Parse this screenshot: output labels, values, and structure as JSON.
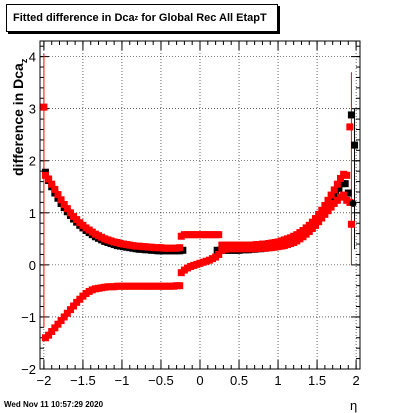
{
  "title_main": "Fitted difference in Dca",
  "title_sub": "z",
  "title_tail": " for Global Rec All EtapT",
  "ylabel_main": "difference in Dca",
  "ylabel_sub": "z",
  "xlabel": "η",
  "footer": "Wed Nov 11 10:57:29 2020",
  "chart_data": {
    "type": "scatter",
    "xlim": [
      -2.05,
      2.05
    ],
    "ylim": [
      -2,
      4.3
    ],
    "xticks": [
      -2,
      -1.5,
      -1,
      -0.5,
      0,
      0.5,
      1,
      1.5,
      2
    ],
    "xtick_labels": [
      "−2",
      "−1.5",
      "−1",
      "−0.5",
      "0",
      "0.5",
      "1",
      "1.5",
      "2"
    ],
    "yticks": [
      -2,
      -1,
      0,
      1,
      2,
      3,
      4
    ],
    "ytick_labels": [
      "−2",
      "−1",
      "0",
      "1",
      "2",
      "3",
      "4"
    ],
    "grid": true,
    "series": [
      {
        "color": "#000000",
        "marker": "square",
        "points": [
          [
            -1.98,
            1.78
          ],
          [
            -1.94,
            1.62
          ],
          [
            -1.9,
            1.5
          ],
          [
            -1.86,
            1.38
          ],
          [
            -1.82,
            1.28
          ],
          [
            -1.78,
            1.18
          ],
          [
            -1.74,
            1.1
          ],
          [
            -1.7,
            1.02
          ],
          [
            -1.66,
            0.95
          ],
          [
            -1.62,
            0.88
          ],
          [
            -1.58,
            0.82
          ],
          [
            -1.54,
            0.76
          ],
          [
            -1.5,
            0.71
          ],
          [
            -1.46,
            0.66
          ],
          [
            -1.42,
            0.62
          ],
          [
            -1.38,
            0.58
          ],
          [
            -1.34,
            0.54
          ],
          [
            -1.3,
            0.51
          ],
          [
            -1.26,
            0.48
          ],
          [
            -1.22,
            0.45
          ],
          [
            -1.18,
            0.43
          ],
          [
            -1.14,
            0.41
          ],
          [
            -1.1,
            0.39
          ],
          [
            -1.06,
            0.37
          ],
          [
            -1.02,
            0.36
          ],
          [
            -0.98,
            0.35
          ],
          [
            -0.94,
            0.34
          ],
          [
            -0.9,
            0.33
          ],
          [
            -0.86,
            0.32
          ],
          [
            -0.82,
            0.31
          ],
          [
            -0.78,
            0.3
          ],
          [
            -0.74,
            0.3
          ],
          [
            -0.7,
            0.29
          ],
          [
            -0.66,
            0.29
          ],
          [
            -0.62,
            0.28
          ],
          [
            -0.58,
            0.28
          ],
          [
            -0.54,
            0.27
          ],
          [
            -0.5,
            0.27
          ],
          [
            -0.46,
            0.27
          ],
          [
            -0.42,
            0.27
          ],
          [
            -0.38,
            0.27
          ],
          [
            -0.34,
            0.27
          ],
          [
            -0.3,
            0.27
          ],
          [
            -0.26,
            0.27
          ],
          [
            -0.22,
            0.28
          ],
          [
            0.22,
            0.28
          ],
          [
            0.26,
            0.28
          ],
          [
            0.3,
            0.28
          ],
          [
            0.34,
            0.28
          ],
          [
            0.38,
            0.28
          ],
          [
            0.42,
            0.28
          ],
          [
            0.46,
            0.28
          ],
          [
            0.5,
            0.28
          ],
          [
            0.54,
            0.29
          ],
          [
            0.58,
            0.29
          ],
          [
            0.62,
            0.29
          ],
          [
            0.66,
            0.3
          ],
          [
            0.7,
            0.3
          ],
          [
            0.74,
            0.31
          ],
          [
            0.78,
            0.31
          ],
          [
            0.82,
            0.32
          ],
          [
            0.86,
            0.33
          ],
          [
            0.9,
            0.34
          ],
          [
            0.94,
            0.35
          ],
          [
            0.98,
            0.36
          ],
          [
            1.02,
            0.37
          ],
          [
            1.06,
            0.39
          ],
          [
            1.1,
            0.41
          ],
          [
            1.14,
            0.43
          ],
          [
            1.18,
            0.46
          ],
          [
            1.22,
            0.49
          ],
          [
            1.26,
            0.52
          ],
          [
            1.3,
            0.56
          ],
          [
            1.34,
            0.6
          ],
          [
            1.38,
            0.65
          ],
          [
            1.42,
            0.7
          ],
          [
            1.46,
            0.76
          ],
          [
            1.5,
            0.83
          ],
          [
            1.54,
            0.91
          ],
          [
            1.58,
            0.99
          ],
          [
            1.62,
            1.08
          ],
          [
            1.66,
            1.17
          ],
          [
            1.7,
            1.27
          ],
          [
            1.74,
            1.37
          ],
          [
            1.78,
            1.47
          ],
          [
            1.82,
            1.56
          ],
          [
            1.86,
            1.56
          ],
          [
            1.9,
            1.38
          ],
          [
            1.94,
            2.88
          ],
          [
            1.98,
            2.3
          ]
        ]
      },
      {
        "color": "#ff0000",
        "marker": "square",
        "points": [
          [
            -2.0,
            3.03
          ],
          [
            -1.98,
            1.72
          ],
          [
            -1.94,
            1.65
          ],
          [
            -1.9,
            1.55
          ],
          [
            -1.86,
            1.45
          ],
          [
            -1.82,
            1.35
          ],
          [
            -1.78,
            1.25
          ],
          [
            -1.74,
            1.16
          ],
          [
            -1.7,
            1.08
          ],
          [
            -1.66,
            1.0
          ],
          [
            -1.62,
            0.93
          ],
          [
            -1.58,
            0.87
          ],
          [
            -1.54,
            0.81
          ],
          [
            -1.5,
            0.76
          ],
          [
            -1.46,
            0.71
          ],
          [
            -1.42,
            0.67
          ],
          [
            -1.38,
            0.63
          ],
          [
            -1.34,
            0.59
          ],
          [
            -1.3,
            0.56
          ],
          [
            -1.26,
            0.53
          ],
          [
            -1.22,
            0.5
          ],
          [
            -1.18,
            0.48
          ],
          [
            -1.14,
            0.46
          ],
          [
            -1.1,
            0.44
          ],
          [
            -1.06,
            0.43
          ],
          [
            -1.02,
            0.41
          ],
          [
            -0.98,
            0.4
          ],
          [
            -0.94,
            0.39
          ],
          [
            -0.9,
            0.38
          ],
          [
            -0.86,
            0.37
          ],
          [
            -0.82,
            0.36
          ],
          [
            -0.78,
            0.36
          ],
          [
            -0.74,
            0.35
          ],
          [
            -0.7,
            0.35
          ],
          [
            -0.66,
            0.34
          ],
          [
            -0.62,
            0.34
          ],
          [
            -0.58,
            0.33
          ],
          [
            -0.54,
            0.33
          ],
          [
            -0.5,
            0.33
          ],
          [
            -0.46,
            0.32
          ],
          [
            -0.42,
            0.32
          ],
          [
            -0.38,
            0.32
          ],
          [
            -0.34,
            0.32
          ],
          [
            -0.3,
            0.32
          ],
          [
            -0.26,
            0.33
          ],
          [
            -0.24,
            0.55
          ],
          [
            -0.2,
            0.58
          ],
          [
            -0.16,
            0.58
          ],
          [
            -0.12,
            0.58
          ],
          [
            -0.08,
            0.58
          ],
          [
            -0.04,
            0.58
          ],
          [
            0.0,
            0.58
          ],
          [
            0.04,
            0.58
          ],
          [
            0.08,
            0.58
          ],
          [
            0.12,
            0.58
          ],
          [
            0.16,
            0.58
          ],
          [
            0.2,
            0.58
          ],
          [
            0.24,
            0.58
          ],
          [
            0.28,
            0.38
          ],
          [
            0.32,
            0.38
          ],
          [
            0.36,
            0.38
          ],
          [
            0.4,
            0.38
          ],
          [
            0.44,
            0.38
          ],
          [
            0.48,
            0.38
          ],
          [
            0.52,
            0.38
          ],
          [
            0.56,
            0.38
          ],
          [
            0.6,
            0.38
          ],
          [
            0.64,
            0.38
          ],
          [
            0.68,
            0.38
          ],
          [
            0.72,
            0.39
          ],
          [
            0.76,
            0.39
          ],
          [
            0.8,
            0.4
          ],
          [
            0.84,
            0.4
          ],
          [
            0.88,
            0.41
          ],
          [
            0.92,
            0.42
          ],
          [
            0.96,
            0.43
          ],
          [
            1.0,
            0.44
          ],
          [
            1.04,
            0.46
          ],
          [
            1.08,
            0.48
          ],
          [
            1.12,
            0.5
          ],
          [
            1.16,
            0.52
          ],
          [
            1.2,
            0.55
          ],
          [
            1.24,
            0.58
          ],
          [
            1.28,
            0.62
          ],
          [
            1.32,
            0.66
          ],
          [
            1.36,
            0.71
          ],
          [
            1.4,
            0.76
          ],
          [
            1.44,
            0.82
          ],
          [
            1.48,
            0.89
          ],
          [
            1.52,
            0.97
          ],
          [
            1.56,
            1.05
          ],
          [
            1.6,
            1.14
          ],
          [
            1.64,
            1.24
          ],
          [
            1.68,
            1.34
          ],
          [
            1.72,
            1.44
          ],
          [
            1.76,
            1.55
          ],
          [
            1.8,
            1.66
          ],
          [
            1.84,
            1.74
          ],
          [
            1.88,
            1.72
          ],
          [
            1.92,
            2.65
          ],
          [
            1.94,
            0.78
          ]
        ]
      },
      {
        "color": "#ff0000",
        "marker": "square",
        "points": [
          [
            -1.98,
            -1.4
          ],
          [
            -1.94,
            -1.35
          ],
          [
            -1.9,
            -1.28
          ],
          [
            -1.86,
            -1.21
          ],
          [
            -1.82,
            -1.14
          ],
          [
            -1.78,
            -1.07
          ],
          [
            -1.74,
            -1.0
          ],
          [
            -1.7,
            -0.93
          ],
          [
            -1.66,
            -0.86
          ],
          [
            -1.62,
            -0.79
          ],
          [
            -1.58,
            -0.72
          ],
          [
            -1.54,
            -0.66
          ],
          [
            -1.5,
            -0.6
          ],
          [
            -1.46,
            -0.55
          ],
          [
            -1.42,
            -0.51
          ],
          [
            -1.38,
            -0.48
          ],
          [
            -1.34,
            -0.46
          ],
          [
            -1.3,
            -0.45
          ],
          [
            -1.26,
            -0.44
          ],
          [
            -1.22,
            -0.43
          ],
          [
            -1.18,
            -0.42
          ],
          [
            -1.14,
            -0.42
          ],
          [
            -1.1,
            -0.42
          ],
          [
            -1.06,
            -0.41
          ],
          [
            -1.02,
            -0.41
          ],
          [
            -0.98,
            -0.41
          ],
          [
            -0.94,
            -0.41
          ],
          [
            -0.9,
            -0.41
          ],
          [
            -0.86,
            -0.41
          ],
          [
            -0.82,
            -0.41
          ],
          [
            -0.78,
            -0.41
          ],
          [
            -0.74,
            -0.41
          ],
          [
            -0.7,
            -0.41
          ],
          [
            -0.66,
            -0.41
          ],
          [
            -0.62,
            -0.41
          ],
          [
            -0.58,
            -0.41
          ],
          [
            -0.54,
            -0.41
          ],
          [
            -0.5,
            -0.41
          ],
          [
            -0.46,
            -0.41
          ],
          [
            -0.42,
            -0.41
          ],
          [
            -0.38,
            -0.41
          ],
          [
            -0.34,
            -0.41
          ],
          [
            -0.3,
            -0.4
          ],
          [
            -0.26,
            -0.4
          ],
          [
            -0.24,
            -0.15
          ],
          [
            -0.2,
            -0.1
          ],
          [
            -0.16,
            -0.06
          ],
          [
            -0.12,
            -0.03
          ],
          [
            -0.08,
            -0.01
          ],
          [
            -0.04,
            0.01
          ],
          [
            0.0,
            0.03
          ],
          [
            0.04,
            0.05
          ],
          [
            0.08,
            0.07
          ],
          [
            0.12,
            0.09
          ],
          [
            0.16,
            0.12
          ],
          [
            0.2,
            0.15
          ],
          [
            0.24,
            0.2
          ],
          [
            0.28,
            0.28
          ],
          [
            0.32,
            0.3
          ],
          [
            0.36,
            0.31
          ],
          [
            0.4,
            0.31
          ],
          [
            0.44,
            0.31
          ],
          [
            0.48,
            0.31
          ],
          [
            0.52,
            0.31
          ],
          [
            0.56,
            0.31
          ],
          [
            0.6,
            0.31
          ],
          [
            0.64,
            0.31
          ],
          [
            0.68,
            0.31
          ],
          [
            0.72,
            0.31
          ],
          [
            0.76,
            0.32
          ],
          [
            0.8,
            0.32
          ],
          [
            0.84,
            0.32
          ],
          [
            0.88,
            0.33
          ],
          [
            0.92,
            0.33
          ],
          [
            0.96,
            0.34
          ],
          [
            1.0,
            0.35
          ],
          [
            1.04,
            0.36
          ],
          [
            1.08,
            0.37
          ],
          [
            1.12,
            0.39
          ],
          [
            1.16,
            0.41
          ],
          [
            1.2,
            0.43
          ],
          [
            1.24,
            0.46
          ],
          [
            1.28,
            0.5
          ],
          [
            1.32,
            0.54
          ],
          [
            1.36,
            0.59
          ],
          [
            1.4,
            0.64
          ],
          [
            1.44,
            0.7
          ],
          [
            1.48,
            0.76
          ],
          [
            1.52,
            0.83
          ],
          [
            1.56,
            0.9
          ],
          [
            1.6,
            0.97
          ],
          [
            1.64,
            1.04
          ],
          [
            1.68,
            1.11
          ],
          [
            1.72,
            1.18
          ],
          [
            1.76,
            1.24
          ],
          [
            1.8,
            1.3
          ],
          [
            1.84,
            1.34
          ],
          [
            1.88,
            1.24
          ],
          [
            1.92,
            1.2
          ]
        ]
      }
    ],
    "error_bars": [
      {
        "x": -2.0,
        "y": 3.03,
        "ylo": -1.2,
        "yhi": 4.05,
        "color": "#ff0000"
      },
      {
        "x": 1.94,
        "y": 2.88,
        "ylo": 0.0,
        "yhi": 3.7,
        "color": "#ff0000"
      },
      {
        "x": 1.98,
        "y": 2.3,
        "ylo": 0.3,
        "yhi": 3.0,
        "color": "#000000"
      }
    ]
  }
}
